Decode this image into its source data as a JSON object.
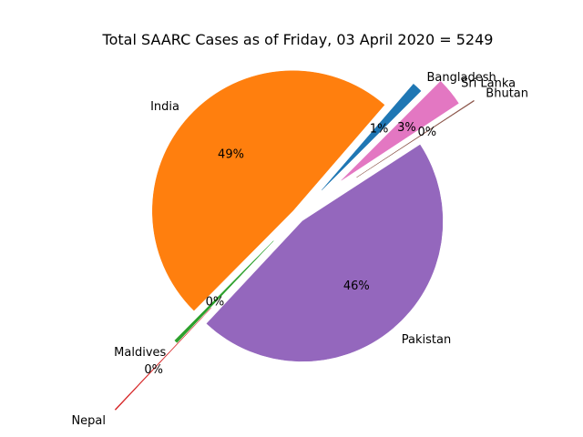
{
  "chart_data": {
    "type": "pie",
    "title": "Total SAARC Cases as of Friday, 03 April 2020 = 5249",
    "start_angle_deg": 45,
    "direction": "counterclockwise",
    "slices": [
      {
        "label": "Bangladesh",
        "value": 61,
        "pct_label": "1%",
        "color": "#1f77b4",
        "explode": 0.25
      },
      {
        "label": "India",
        "value": 2567,
        "pct_label": "49%",
        "color": "#ff7f0e",
        "explode": 0.05
      },
      {
        "label": "Maldives",
        "value": 19,
        "pct_label": "0%",
        "color": "#2ca02c",
        "explode": 0.25
      },
      {
        "label": "Nepal",
        "value": 6,
        "pct_label": "0%",
        "color": "#d62728",
        "explode": 0.9
      },
      {
        "label": "Pakistan",
        "value": 2421,
        "pct_label": "46%",
        "color": "#9467bd",
        "explode": 0.05
      },
      {
        "label": "Bhutan",
        "value": 5,
        "pct_label": "0%",
        "color": "#8c564b",
        "explode": 0.5
      },
      {
        "label": "Sri Lanka",
        "value": 170,
        "pct_label": "3%",
        "color": "#e377c2",
        "explode": 0.4
      }
    ]
  }
}
